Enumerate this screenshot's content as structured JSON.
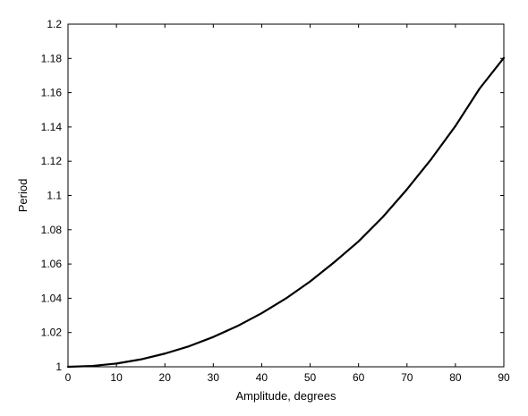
{
  "chart_data": {
    "type": "line",
    "title": "",
    "xlabel": "Amplitude, degrees",
    "ylabel": "Period",
    "xlim": [
      0,
      90
    ],
    "ylim": [
      1,
      1.2
    ],
    "xticks": [
      "0",
      "10",
      "20",
      "30",
      "40",
      "50",
      "60",
      "70",
      "80",
      "90"
    ],
    "yticks": [
      "1",
      "1.02",
      "1.04",
      "1.06",
      "1.08",
      "1.1",
      "1.12",
      "1.14",
      "1.16",
      "1.18",
      "1.2"
    ],
    "grid": false,
    "series": [
      {
        "color": "#000000",
        "x": [
          0,
          5,
          10,
          15,
          20,
          25,
          30,
          35,
          40,
          45,
          50,
          55,
          60,
          65,
          70,
          75,
          80,
          85,
          90
        ],
        "y": [
          1.0,
          1.0005,
          1.0019,
          1.0043,
          1.0077,
          1.012,
          1.0174,
          1.0238,
          1.0313,
          1.0399,
          1.0498,
          1.0611,
          1.0732,
          1.0874,
          1.1036,
          1.1212,
          1.1405,
          1.1624,
          1.1803
        ]
      }
    ]
  }
}
